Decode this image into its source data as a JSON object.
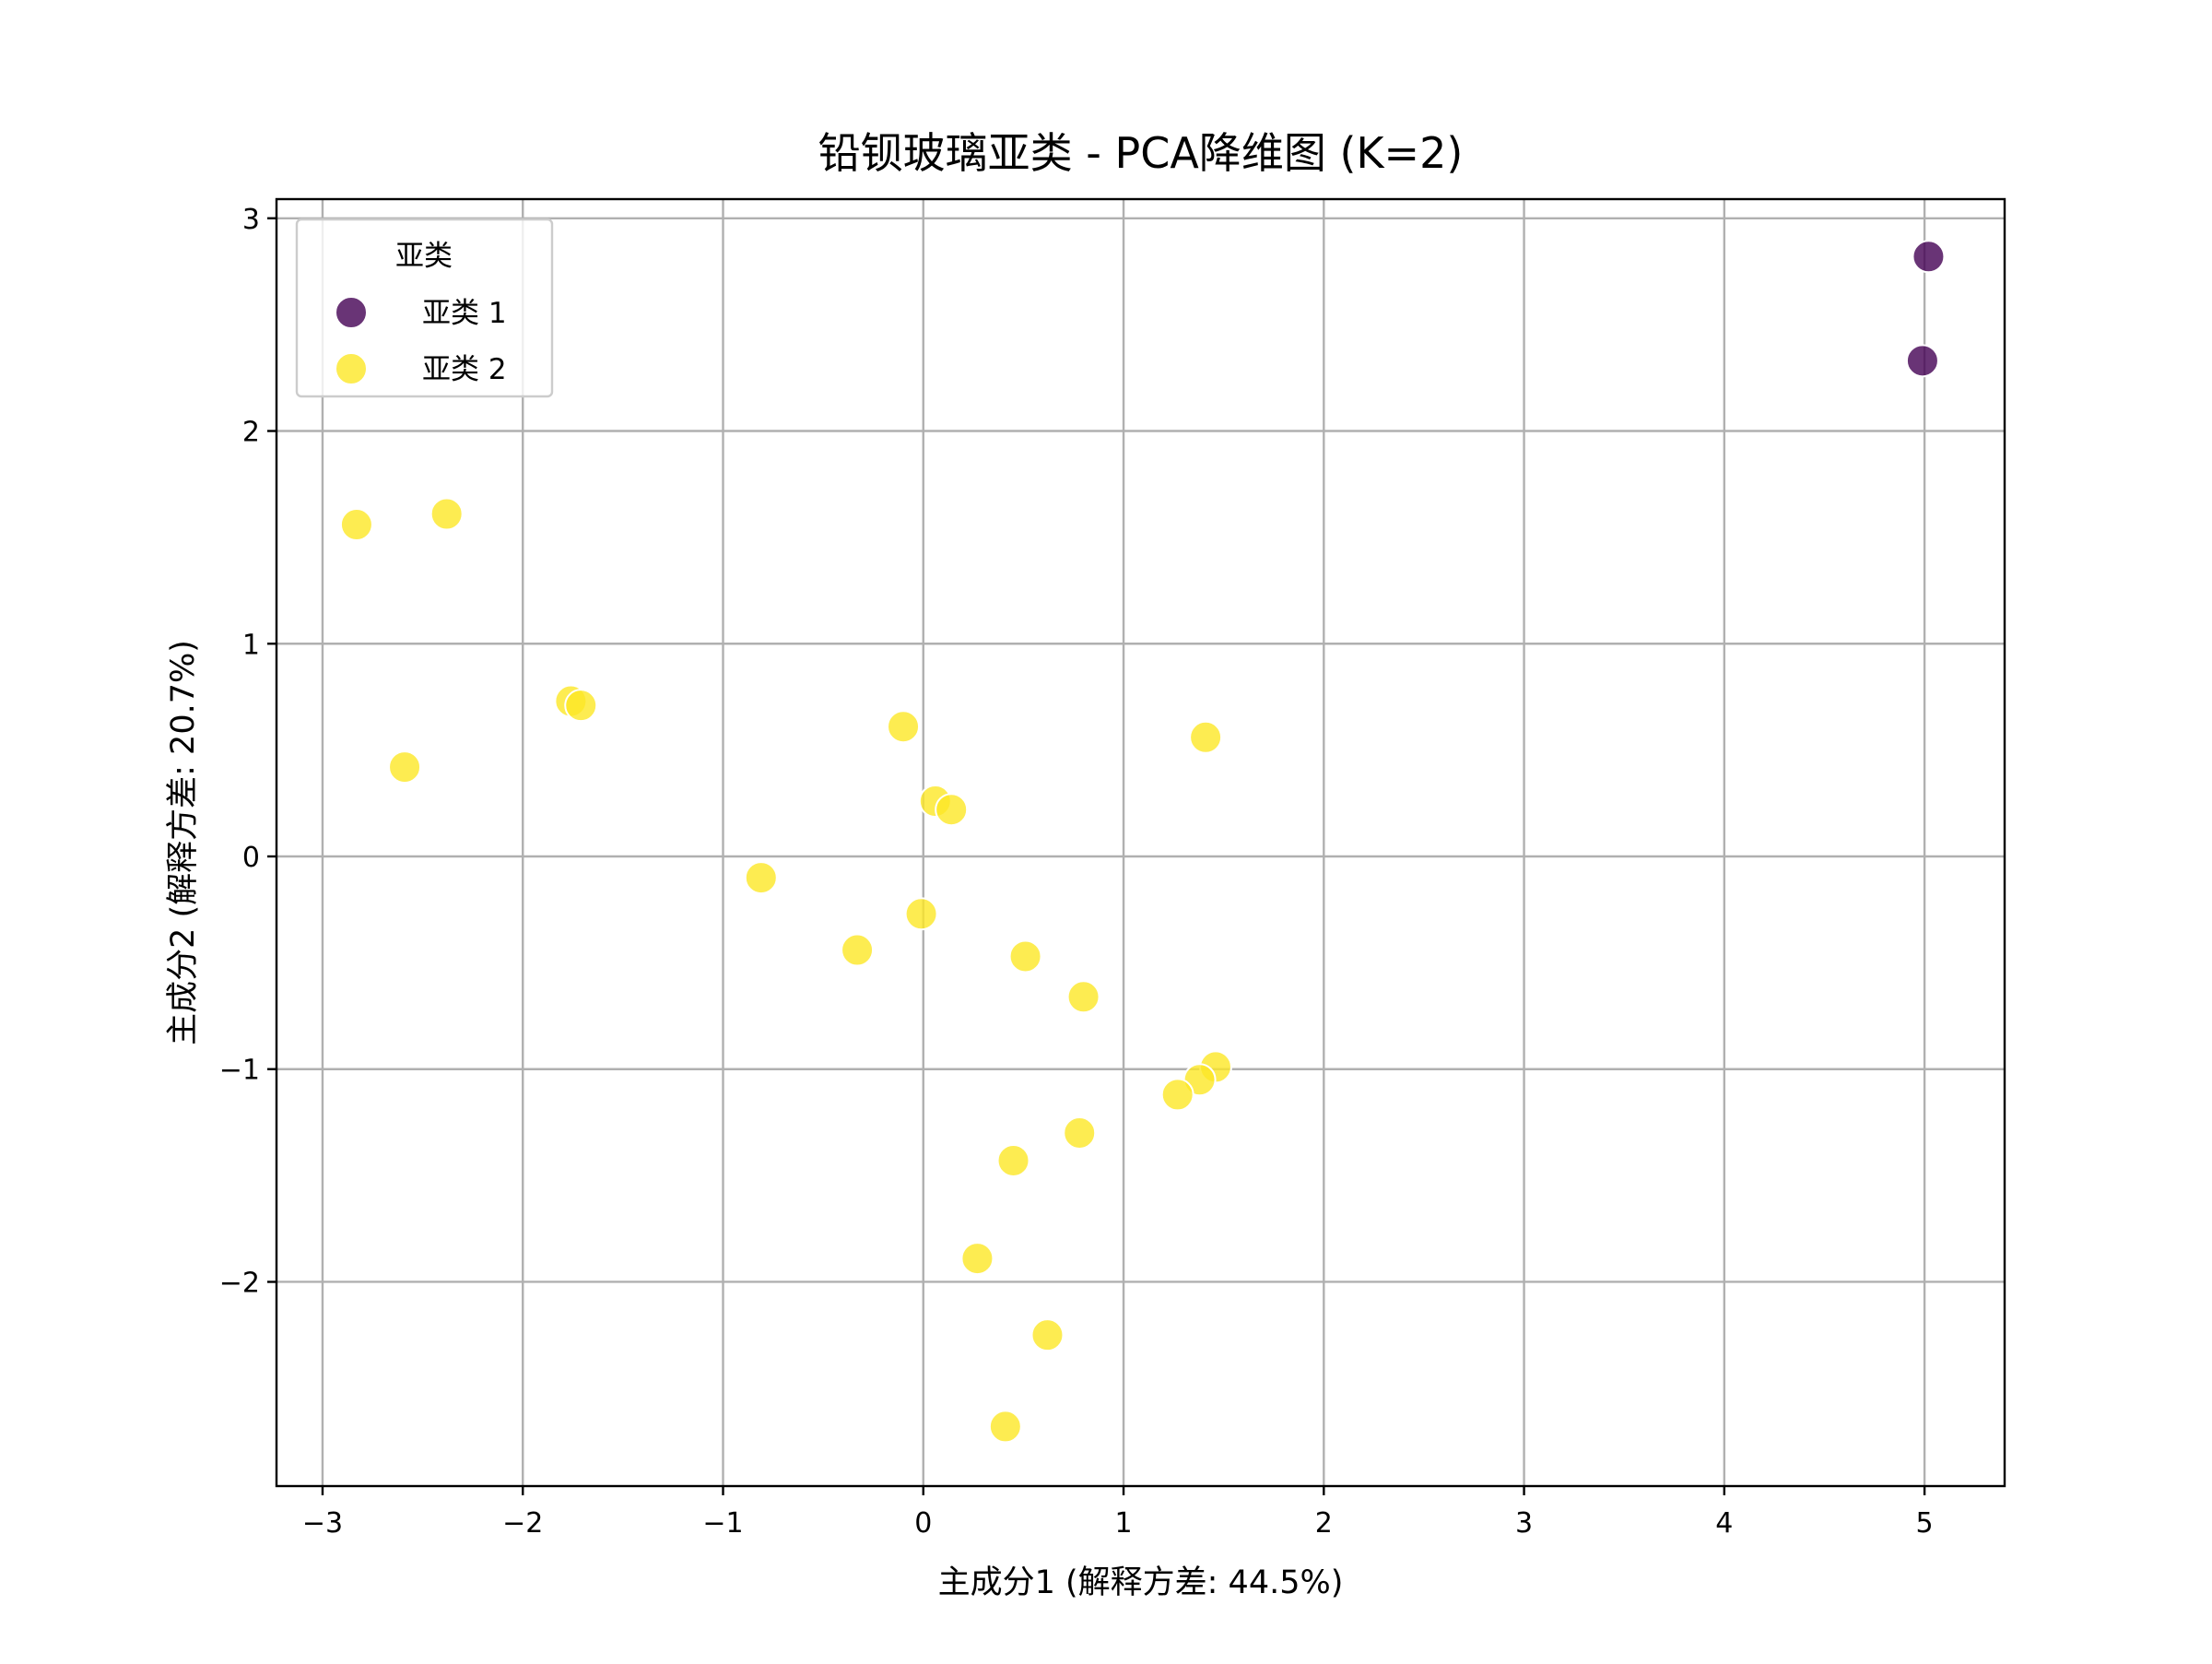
{
  "chart_data": {
    "type": "scatter",
    "title": "铅钡玻璃亚类 - PCA降维图 (K=2)",
    "xlabel": "主成分1 (解释方差: 44.5%)",
    "ylabel": "主成分2 (解释方差: 20.7%)",
    "xlim": [
      -3.23,
      5.4
    ],
    "ylim": [
      -2.96,
      3.09
    ],
    "xticks": [
      -3,
      -2,
      -1,
      0,
      1,
      2,
      3,
      4,
      5
    ],
    "yticks": [
      -2,
      -1,
      0,
      1,
      2,
      3
    ],
    "xtick_labels": [
      "−3",
      "−2",
      "−1",
      "0",
      "1",
      "2",
      "3",
      "4",
      "5"
    ],
    "ytick_labels": [
      "−2",
      "−1",
      "0",
      "1",
      "2",
      "3"
    ],
    "grid": true,
    "legend": {
      "title": "亚类",
      "placement": "upper-left"
    },
    "series": [
      {
        "name": "亚类 1",
        "color": "#440154",
        "points": [
          {
            "x": 5.02,
            "y": 2.82
          },
          {
            "x": 4.99,
            "y": 2.33
          }
        ]
      },
      {
        "name": "亚类 2",
        "color": "#fde725",
        "points": [
          {
            "x": -2.83,
            "y": 1.56
          },
          {
            "x": -2.38,
            "y": 1.61
          },
          {
            "x": -2.59,
            "y": 0.42
          },
          {
            "x": -1.76,
            "y": 0.73
          },
          {
            "x": -1.71,
            "y": 0.71
          },
          {
            "x": -0.81,
            "y": -0.1
          },
          {
            "x": -0.33,
            "y": -0.44
          },
          {
            "x": -0.1,
            "y": 0.61
          },
          {
            "x": -0.01,
            "y": -0.27
          },
          {
            "x": 0.06,
            "y": 0.26
          },
          {
            "x": 0.14,
            "y": 0.22
          },
          {
            "x": 0.51,
            "y": -0.47
          },
          {
            "x": 0.8,
            "y": -0.66
          },
          {
            "x": 1.41,
            "y": 0.56
          },
          {
            "x": 1.46,
            "y": -0.99
          },
          {
            "x": 1.38,
            "y": -1.05
          },
          {
            "x": 1.27,
            "y": -1.12
          },
          {
            "x": 0.78,
            "y": -1.3
          },
          {
            "x": 0.45,
            "y": -1.43
          },
          {
            "x": 0.27,
            "y": -1.89
          },
          {
            "x": 0.62,
            "y": -2.25
          },
          {
            "x": 0.41,
            "y": -2.68
          }
        ]
      }
    ]
  }
}
